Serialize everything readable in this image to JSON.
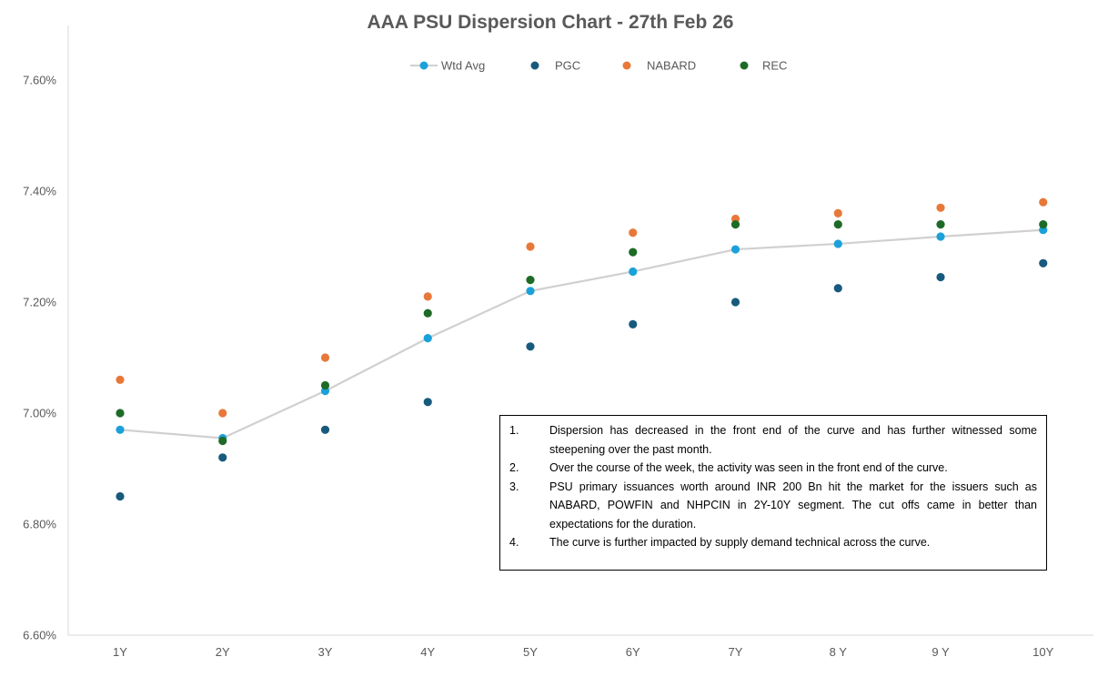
{
  "chart_data": {
    "type": "scatter",
    "title": "AAA PSU Dispersion Chart - 27th Feb 26",
    "categories": [
      "1Y",
      "2Y",
      "3Y",
      "4Y",
      "5Y",
      "6Y",
      "7Y",
      "8 Y",
      "9 Y",
      "10Y"
    ],
    "ylim": [
      6.6,
      7.7
    ],
    "yticks": [
      "6.60%",
      "6.80%",
      "7.00%",
      "7.20%",
      "7.40%",
      "7.60%"
    ],
    "ytick_values": [
      6.6,
      6.8,
      7.0,
      7.2,
      7.4,
      7.6
    ],
    "grid": false,
    "legend_position": "top",
    "series": [
      {
        "name": "Wtd Avg",
        "style": "line-marker",
        "color": "#1BA1D9",
        "line_color": "#D0D0D0",
        "values": [
          6.97,
          6.955,
          7.04,
          7.135,
          7.22,
          7.255,
          7.295,
          7.305,
          7.318,
          7.33
        ]
      },
      {
        "name": "PGC",
        "style": "marker",
        "color": "#185A7D",
        "values": [
          6.85,
          6.92,
          6.97,
          7.02,
          7.12,
          7.16,
          7.2,
          7.225,
          7.245,
          7.27
        ]
      },
      {
        "name": "NABARD",
        "style": "marker",
        "color": "#E8783A",
        "values": [
          7.06,
          7.0,
          7.1,
          7.21,
          7.3,
          7.325,
          7.35,
          7.36,
          7.37,
          7.38
        ]
      },
      {
        "name": "REC",
        "style": "marker",
        "color": "#1E6B27",
        "values": [
          7.0,
          6.95,
          7.05,
          7.18,
          7.24,
          7.29,
          7.34,
          7.34,
          7.34,
          7.34
        ]
      }
    ]
  },
  "notes": [
    {
      "num": "1.",
      "text": "Dispersion has decreased in the front end of the curve and has further witnessed some steepening  over the  past month."
    },
    {
      "num": "2.",
      "text": "Over the course of the week, the activity was seen in the front end of the curve."
    },
    {
      "num": "3.",
      "text": "PSU primary issuances worth around INR 200 Bn hit the market for the issuers such as NABARD, POWFIN and NHPCIN in 2Y-10Y segment.  The cut offs came in better than expectations for the duration."
    },
    {
      "num": "4.",
      "text": "The curve is further impacted by supply demand technical across the curve."
    }
  ]
}
